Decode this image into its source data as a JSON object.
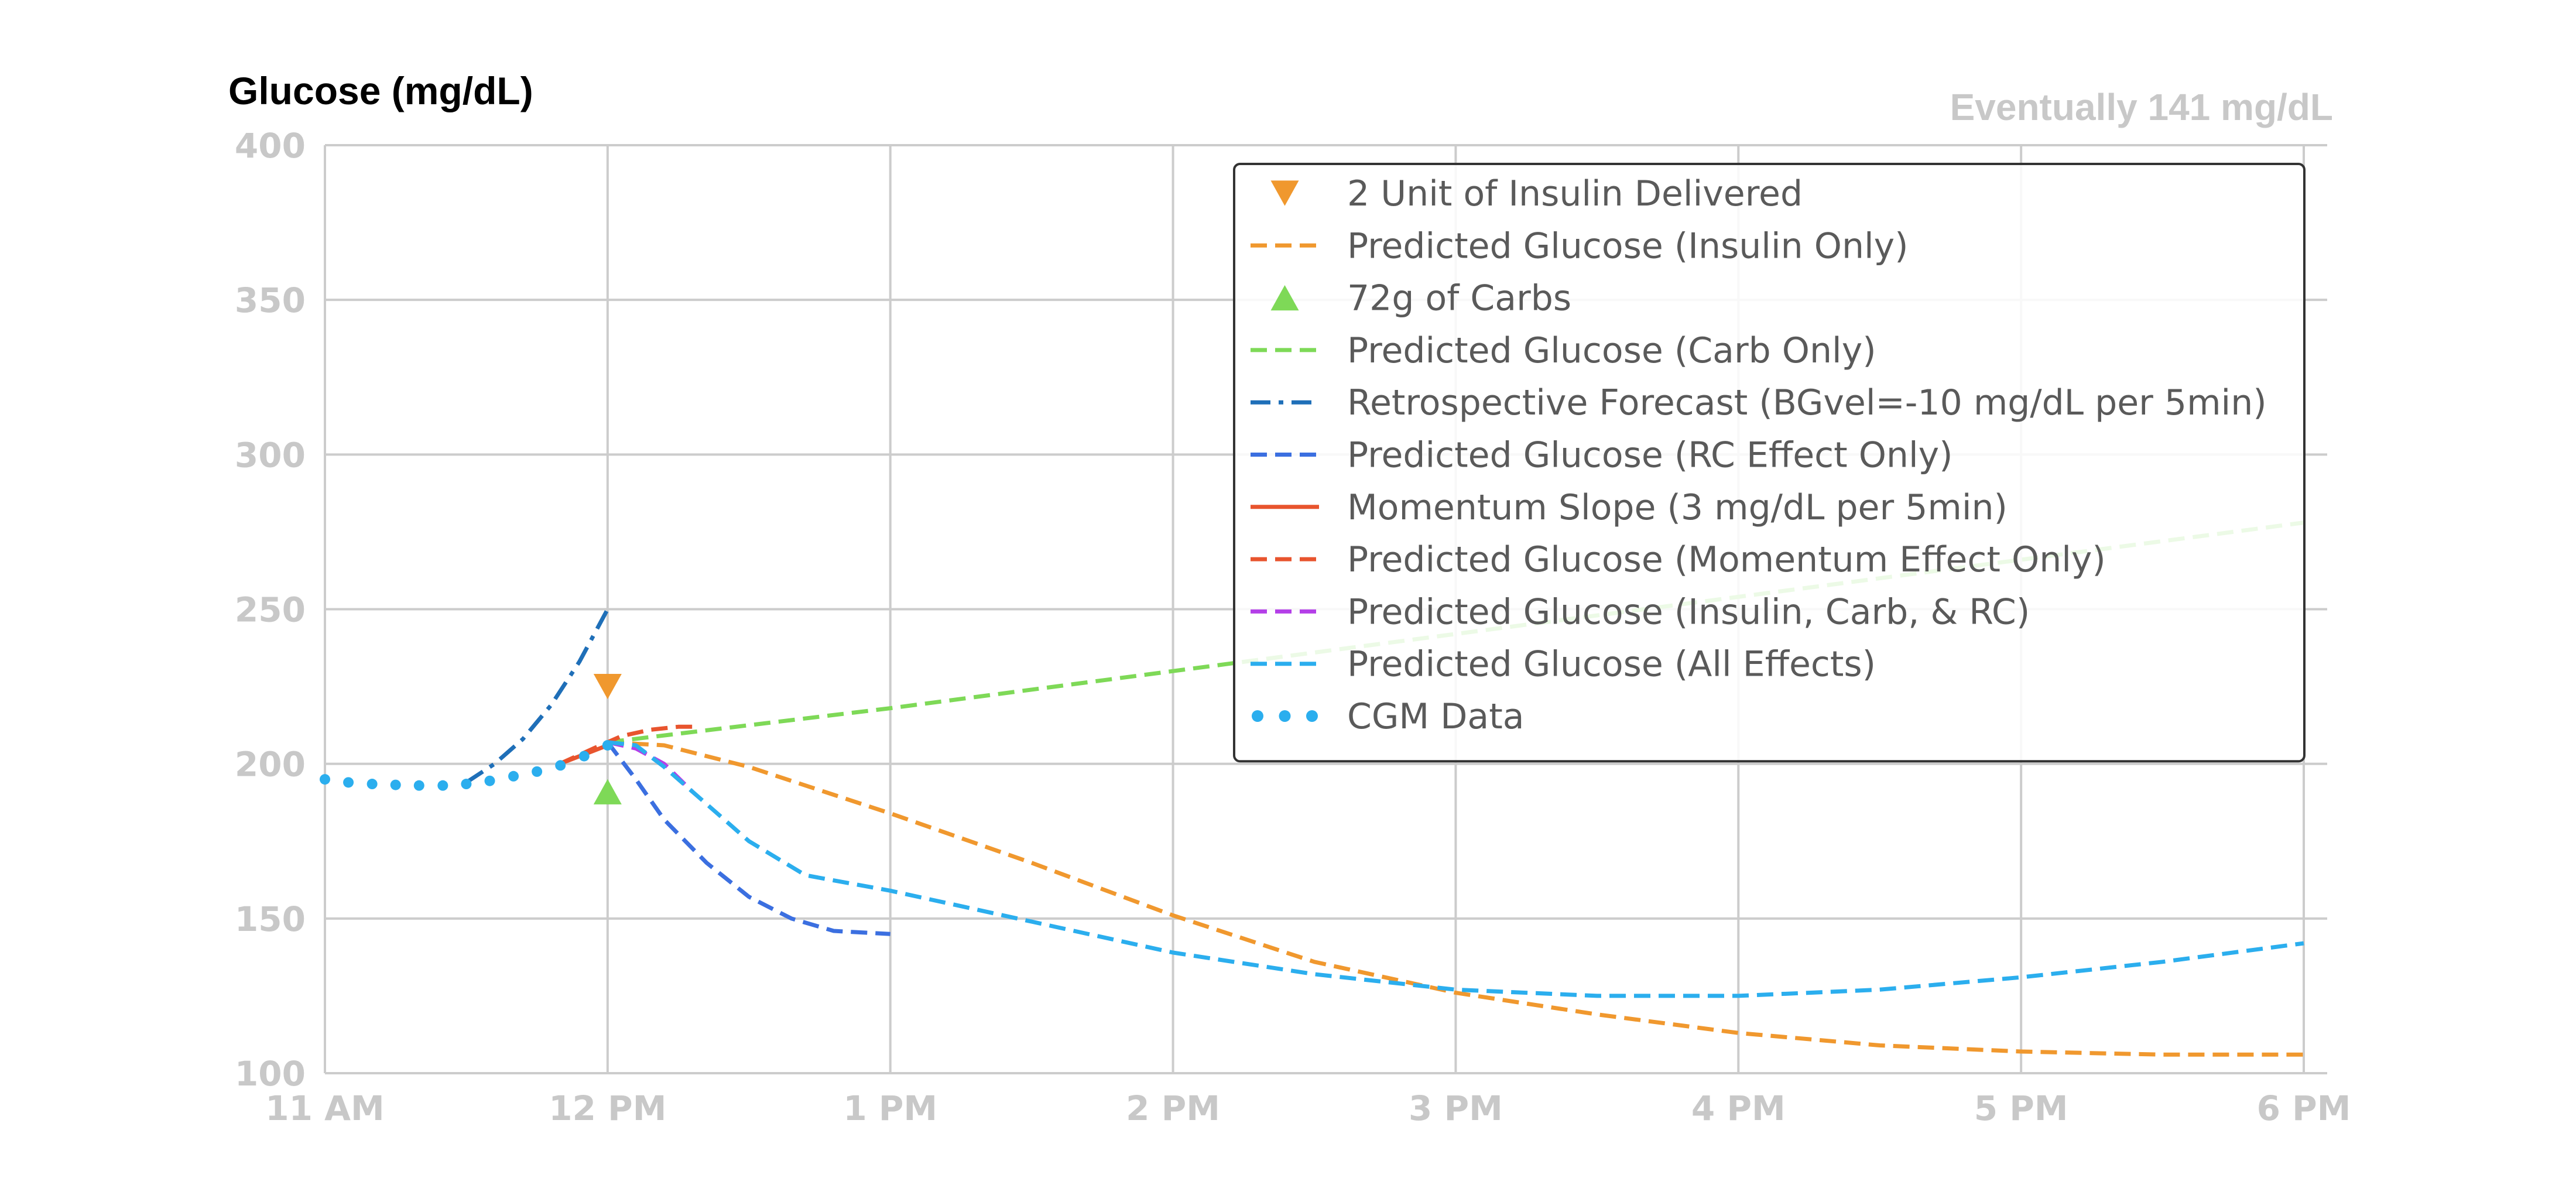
{
  "chart_data": {
    "type": "line",
    "title": "",
    "ylabel": "Glucose (mg/dL)",
    "xlabel": "",
    "annotation": "Eventually 141 mg/dL",
    "xlim_hours": [
      11,
      18
    ],
    "ylim": [
      100,
      400
    ],
    "x_ticks": [
      {
        "hour": 11,
        "label": "11 AM"
      },
      {
        "hour": 12,
        "label": "12 PM"
      },
      {
        "hour": 13,
        "label": "1 PM"
      },
      {
        "hour": 14,
        "label": "2 PM"
      },
      {
        "hour": 15,
        "label": "3 PM"
      },
      {
        "hour": 16,
        "label": "4 PM"
      },
      {
        "hour": 17,
        "label": "5 PM"
      },
      {
        "hour": 18,
        "label": "6 PM"
      }
    ],
    "y_ticks": [
      100,
      150,
      200,
      250,
      300,
      350,
      400
    ],
    "grid": true,
    "legend_position": "top-right",
    "series": [
      {
        "name": "2 Unit of Insulin Delivered",
        "kind": "marker",
        "marker": "triangle-down",
        "color": "#f0982e",
        "points": [
          [
            12.0,
            225
          ]
        ]
      },
      {
        "name": "Predicted Glucose (Insulin Only)",
        "kind": "line",
        "dash": "dashed",
        "color": "#f0982e",
        "points": [
          [
            12.0,
            207
          ],
          [
            12.2,
            206
          ],
          [
            12.5,
            199
          ],
          [
            12.8,
            190
          ],
          [
            13.0,
            184
          ],
          [
            13.5,
            168
          ],
          [
            14.0,
            151
          ],
          [
            14.5,
            136
          ],
          [
            15.0,
            126
          ],
          [
            15.5,
            119
          ],
          [
            16.0,
            113
          ],
          [
            16.5,
            109
          ],
          [
            17.0,
            107
          ],
          [
            17.5,
            106
          ],
          [
            18.0,
            106
          ]
        ]
      },
      {
        "name": "72g of Carbs",
        "kind": "marker",
        "marker": "triangle-up",
        "color": "#7ed957",
        "points": [
          [
            12.0,
            191
          ]
        ]
      },
      {
        "name": "Predicted Glucose (Carb Only)",
        "kind": "line",
        "dash": "dashed",
        "color": "#7ed957",
        "points": [
          [
            12.0,
            207
          ],
          [
            13.0,
            218
          ],
          [
            14.0,
            230
          ],
          [
            15.0,
            242
          ],
          [
            16.0,
            254
          ],
          [
            17.0,
            266
          ],
          [
            18.0,
            278
          ]
        ]
      },
      {
        "name": "Retrospective Forecast (BGvel=-10 mg/dL per 5min)",
        "kind": "line",
        "dash": "dashdot",
        "color": "#1f6fb8",
        "points": [
          [
            11.5,
            194
          ],
          [
            11.6,
            200
          ],
          [
            11.7,
            208
          ],
          [
            11.8,
            219
          ],
          [
            11.9,
            233
          ],
          [
            12.0,
            250
          ]
        ]
      },
      {
        "name": "Predicted Glucose (RC Effect Only)",
        "kind": "line",
        "dash": "dashed",
        "color": "#3b6fe0",
        "points": [
          [
            12.0,
            207
          ],
          [
            12.1,
            195
          ],
          [
            12.2,
            182
          ],
          [
            12.35,
            168
          ],
          [
            12.5,
            157
          ],
          [
            12.65,
            150
          ],
          [
            12.8,
            146
          ],
          [
            13.0,
            145
          ]
        ]
      },
      {
        "name": "Momentum Slope (3 mg/dL per 5min)",
        "kind": "line",
        "dash": "solid",
        "color": "#e8542e",
        "points": [
          [
            11.83,
            200
          ],
          [
            12.0,
            206
          ]
        ]
      },
      {
        "name": "Predicted Glucose (Momentum Effect Only)",
        "kind": "line",
        "dash": "dashed",
        "color": "#e8542e",
        "points": [
          [
            11.83,
            200
          ],
          [
            11.95,
            205
          ],
          [
            12.05,
            209
          ],
          [
            12.15,
            211
          ],
          [
            12.25,
            212
          ],
          [
            12.32,
            212
          ]
        ]
      },
      {
        "name": "Predicted Glucose (Insulin, Carb, & RC)",
        "kind": "line",
        "dash": "dashed",
        "color": "#b43fe8",
        "points": [
          [
            12.0,
            207
          ],
          [
            12.1,
            205
          ],
          [
            12.2,
            200
          ],
          [
            12.3,
            191
          ]
        ]
      },
      {
        "name": "Predicted Glucose (All Effects)",
        "kind": "line",
        "dash": "dashed",
        "color": "#2baeee",
        "points": [
          [
            12.0,
            207
          ],
          [
            12.1,
            206
          ],
          [
            12.2,
            199
          ],
          [
            12.35,
            187
          ],
          [
            12.5,
            175
          ],
          [
            12.7,
            164
          ],
          [
            13.0,
            159
          ],
          [
            13.5,
            149
          ],
          [
            14.0,
            139
          ],
          [
            14.5,
            132
          ],
          [
            15.0,
            127
          ],
          [
            15.5,
            125
          ],
          [
            16.0,
            125
          ],
          [
            16.5,
            127
          ],
          [
            17.0,
            131
          ],
          [
            17.5,
            136
          ],
          [
            18.0,
            142
          ]
        ]
      },
      {
        "name": "CGM Data",
        "kind": "dots",
        "color": "#2baeee",
        "points": [
          [
            11.0,
            195
          ],
          [
            11.083,
            194
          ],
          [
            11.167,
            193.5
          ],
          [
            11.25,
            193.2
          ],
          [
            11.333,
            193
          ],
          [
            11.417,
            193
          ],
          [
            11.5,
            193.5
          ],
          [
            11.583,
            194.5
          ],
          [
            11.667,
            196
          ],
          [
            11.75,
            197.5
          ],
          [
            11.833,
            199.5
          ],
          [
            11.917,
            202.5
          ],
          [
            12.0,
            206
          ]
        ]
      }
    ]
  }
}
